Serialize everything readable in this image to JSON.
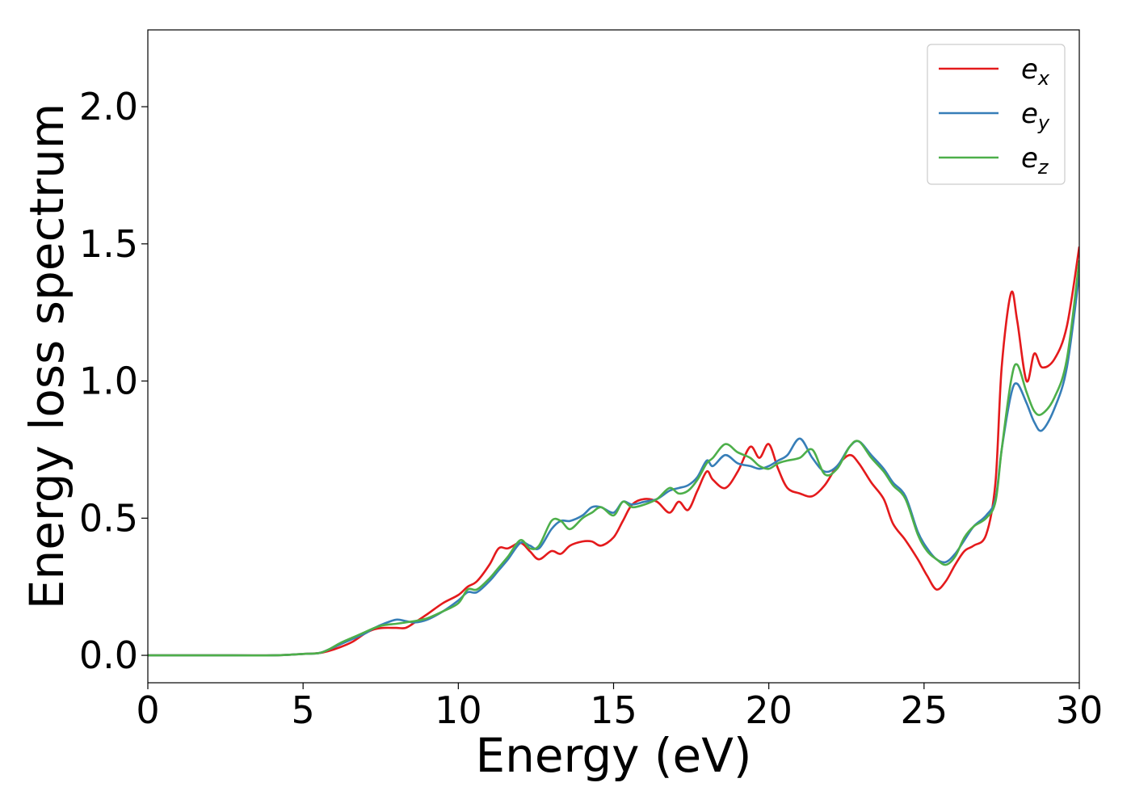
{
  "chart_data": {
    "type": "line",
    "title": "",
    "xlabel": "Energy (eV)",
    "ylabel": "Energy loss spectrum",
    "xlim": [
      0,
      30
    ],
    "ylim": [
      -0.1,
      2.28
    ],
    "xticks": [
      0,
      5,
      10,
      15,
      20,
      25,
      30
    ],
    "yticks": [
      0.0,
      0.5,
      1.0,
      1.5,
      2.0
    ],
    "xtick_labels": [
      "0",
      "5",
      "10",
      "15",
      "20",
      "25",
      "30"
    ],
    "ytick_labels": [
      "0.0",
      "0.5",
      "1.0",
      "1.5",
      "2.0"
    ],
    "grid": false,
    "legend_position": "top-right",
    "series": [
      {
        "name": "e_x",
        "label_base": "e",
        "label_sub": "x",
        "color": "#e41a1c",
        "x": [
          0,
          2,
          4,
          5,
          5.5,
          5.8,
          6.2,
          6.6,
          7,
          7.3,
          7.6,
          8,
          8.3,
          8.6,
          9,
          9.5,
          10,
          10.3,
          10.6,
          11,
          11.3,
          11.6,
          12,
          12.3,
          12.6,
          13,
          13.3,
          13.6,
          14,
          14.3,
          14.6,
          15,
          15.3,
          15.6,
          16,
          16.4,
          16.8,
          17.1,
          17.4,
          17.7,
          18,
          18.2,
          18.6,
          19,
          19.4,
          19.7,
          20,
          20.3,
          20.6,
          21,
          21.4,
          21.8,
          22.2,
          22.6,
          22.9,
          23.3,
          23.7,
          24,
          24.4,
          24.8,
          25.1,
          25.4,
          25.7,
          26,
          26.3,
          26.6,
          27,
          27.3,
          27.5,
          27.8,
          28,
          28.3,
          28.55,
          28.8,
          29.2,
          29.6,
          30
        ],
        "values": [
          0.0,
          0.0,
          0.0,
          0.005,
          0.008,
          0.015,
          0.03,
          0.05,
          0.08,
          0.095,
          0.1,
          0.1,
          0.1,
          0.12,
          0.15,
          0.19,
          0.22,
          0.25,
          0.27,
          0.33,
          0.39,
          0.39,
          0.41,
          0.38,
          0.35,
          0.38,
          0.37,
          0.4,
          0.415,
          0.415,
          0.4,
          0.43,
          0.49,
          0.55,
          0.57,
          0.56,
          0.52,
          0.56,
          0.53,
          0.6,
          0.67,
          0.64,
          0.61,
          0.67,
          0.76,
          0.72,
          0.77,
          0.68,
          0.61,
          0.59,
          0.58,
          0.62,
          0.69,
          0.73,
          0.7,
          0.63,
          0.57,
          0.48,
          0.42,
          0.35,
          0.29,
          0.24,
          0.27,
          0.33,
          0.38,
          0.4,
          0.44,
          0.63,
          1.05,
          1.32,
          1.22,
          1.0,
          1.1,
          1.05,
          1.08,
          1.2,
          1.49
        ]
      },
      {
        "name": "e_y",
        "label_base": "e",
        "label_sub": "y",
        "color": "#377eb8",
        "x": [
          0,
          2,
          4,
          5,
          5.5,
          5.8,
          6.2,
          6.6,
          7,
          7.3,
          7.6,
          8,
          8.3,
          8.6,
          9,
          9.5,
          10,
          10.3,
          10.6,
          11,
          11.3,
          11.6,
          12,
          12.3,
          12.6,
          13,
          13.3,
          13.6,
          14,
          14.3,
          14.6,
          15,
          15.3,
          15.6,
          16,
          16.4,
          16.8,
          17.1,
          17.4,
          17.7,
          18,
          18.2,
          18.6,
          19,
          19.4,
          19.7,
          20,
          20.3,
          20.6,
          21,
          21.4,
          21.8,
          22.2,
          22.6,
          22.9,
          23.3,
          23.7,
          24,
          24.4,
          24.8,
          25.1,
          25.4,
          25.7,
          26,
          26.3,
          26.6,
          27,
          27.3,
          27.5,
          27.8,
          28,
          28.3,
          28.55,
          28.8,
          29.2,
          29.6,
          30
        ],
        "values": [
          0.0,
          0.0,
          0.0,
          0.005,
          0.008,
          0.02,
          0.04,
          0.06,
          0.08,
          0.1,
          0.115,
          0.13,
          0.125,
          0.12,
          0.13,
          0.16,
          0.2,
          0.23,
          0.23,
          0.27,
          0.31,
          0.35,
          0.41,
          0.4,
          0.39,
          0.46,
          0.49,
          0.49,
          0.51,
          0.54,
          0.54,
          0.52,
          0.56,
          0.55,
          0.56,
          0.57,
          0.6,
          0.61,
          0.62,
          0.65,
          0.71,
          0.69,
          0.73,
          0.7,
          0.69,
          0.68,
          0.69,
          0.71,
          0.73,
          0.79,
          0.72,
          0.67,
          0.69,
          0.76,
          0.78,
          0.73,
          0.68,
          0.63,
          0.58,
          0.45,
          0.39,
          0.35,
          0.34,
          0.37,
          0.42,
          0.47,
          0.51,
          0.57,
          0.75,
          0.95,
          0.99,
          0.92,
          0.85,
          0.82,
          0.9,
          1.05,
          1.39
        ]
      },
      {
        "name": "e_z",
        "label_base": "e",
        "label_sub": "z",
        "color": "#4daf4a",
        "x": [
          0,
          2,
          4,
          5,
          5.5,
          5.8,
          6.2,
          6.6,
          7,
          7.3,
          7.6,
          8,
          8.3,
          8.6,
          9,
          9.5,
          10,
          10.3,
          10.6,
          11,
          11.3,
          11.6,
          12,
          12.3,
          12.6,
          13,
          13.3,
          13.6,
          14,
          14.3,
          14.6,
          15,
          15.3,
          15.6,
          16,
          16.4,
          16.8,
          17.1,
          17.4,
          17.7,
          18,
          18.2,
          18.6,
          19,
          19.4,
          19.7,
          20,
          20.3,
          20.6,
          21,
          21.4,
          21.8,
          22.2,
          22.6,
          22.9,
          23.3,
          23.7,
          24,
          24.4,
          24.8,
          25.1,
          25.4,
          25.7,
          26,
          26.3,
          26.6,
          27,
          27.3,
          27.5,
          27.8,
          28,
          28.3,
          28.55,
          28.8,
          29.2,
          29.6,
          30
        ],
        "values": [
          0.0,
          0.0,
          0.0,
          0.005,
          0.008,
          0.02,
          0.045,
          0.065,
          0.085,
          0.1,
          0.11,
          0.115,
          0.12,
          0.125,
          0.135,
          0.16,
          0.19,
          0.24,
          0.24,
          0.28,
          0.32,
          0.36,
          0.42,
          0.39,
          0.4,
          0.49,
          0.49,
          0.46,
          0.5,
          0.52,
          0.54,
          0.51,
          0.56,
          0.54,
          0.55,
          0.57,
          0.61,
          0.59,
          0.6,
          0.64,
          0.7,
          0.72,
          0.77,
          0.74,
          0.72,
          0.69,
          0.68,
          0.7,
          0.71,
          0.72,
          0.75,
          0.66,
          0.68,
          0.76,
          0.78,
          0.72,
          0.67,
          0.62,
          0.57,
          0.44,
          0.38,
          0.35,
          0.33,
          0.36,
          0.43,
          0.47,
          0.5,
          0.56,
          0.75,
          1.0,
          1.06,
          0.96,
          0.89,
          0.88,
          0.94,
          1.08,
          1.44
        ]
      }
    ]
  }
}
